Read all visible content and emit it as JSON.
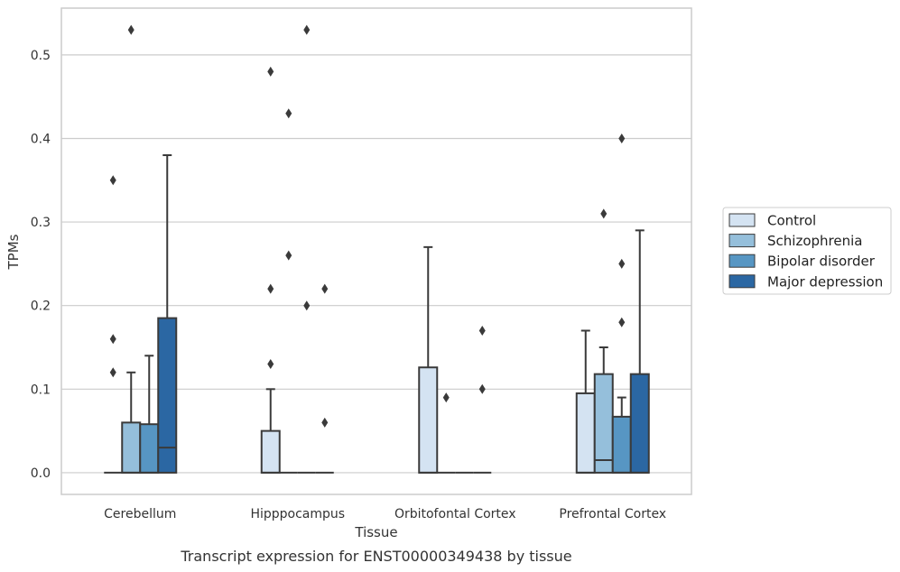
{
  "chart_data": {
    "type": "box",
    "caption": "Transcript expression for ENST00000349438 by tissue",
    "xlabel": "Tissue",
    "ylabel": "TPMs",
    "ylim": [
      -0.026,
      0.556
    ],
    "yticks": [
      0.0,
      0.1,
      0.2,
      0.3,
      0.4,
      0.5
    ],
    "ytick_labels": [
      "0.0",
      "0.1",
      "0.2",
      "0.3",
      "0.4",
      "0.5"
    ],
    "grid": "horizontal",
    "legend_position": "right",
    "categories": [
      "Cerebellum",
      "Hipppocampus",
      "Orbitofontal Cortex",
      "Prefrontal Cortex"
    ],
    "series": [
      {
        "name": "Control",
        "color": "#d4e3f2",
        "boxes": [
          {
            "q1": 0,
            "median": 0,
            "q3": 0,
            "whisker_low": 0,
            "whisker_high": 0,
            "outliers": [
              0.12,
              0.16,
              0.35
            ]
          },
          {
            "q1": 0,
            "median": 0,
            "q3": 0.05,
            "whisker_low": 0,
            "whisker_high": 0.1,
            "outliers": [
              0.13,
              0.22,
              0.48
            ]
          },
          {
            "q1": 0,
            "median": 0,
            "q3": 0.126,
            "whisker_low": 0,
            "whisker_high": 0.27,
            "outliers": []
          },
          {
            "q1": 0,
            "median": 0,
            "q3": 0.095,
            "whisker_low": 0,
            "whisker_high": 0.17,
            "outliers": []
          }
        ]
      },
      {
        "name": "Schizophrenia",
        "color": "#95bfdb",
        "boxes": [
          {
            "q1": 0,
            "median": 0,
            "q3": 0.06,
            "whisker_low": 0,
            "whisker_high": 0.12,
            "outliers": [
              0.53
            ]
          },
          {
            "q1": 0,
            "median": 0,
            "q3": 0,
            "whisker_low": 0,
            "whisker_high": 0,
            "outliers": [
              0.26,
              0.43
            ]
          },
          {
            "q1": 0,
            "median": 0,
            "q3": 0,
            "whisker_low": 0,
            "whisker_high": 0,
            "outliers": [
              0.09
            ]
          },
          {
            "q1": 0,
            "median": 0.015,
            "q3": 0.118,
            "whisker_low": 0,
            "whisker_high": 0.15,
            "outliers": [
              0.31
            ]
          }
        ]
      },
      {
        "name": "Bipolar disorder",
        "color": "#5796c3",
        "boxes": [
          {
            "q1": 0,
            "median": 0,
            "q3": 0.058,
            "whisker_low": 0,
            "whisker_high": 0.14,
            "outliers": []
          },
          {
            "q1": 0,
            "median": 0,
            "q3": 0,
            "whisker_low": 0,
            "whisker_high": 0,
            "outliers": [
              0.2,
              0.53
            ]
          },
          {
            "q1": 0,
            "median": 0,
            "q3": 0,
            "whisker_low": 0,
            "whisker_high": 0,
            "outliers": []
          },
          {
            "q1": 0,
            "median": 0,
            "q3": 0.067,
            "whisker_low": 0,
            "whisker_high": 0.09,
            "outliers": [
              0.18,
              0.25,
              0.4
            ]
          }
        ]
      },
      {
        "name": "Major depression",
        "color": "#2b67a3",
        "boxes": [
          {
            "q1": 0,
            "median": 0.03,
            "q3": 0.185,
            "whisker_low": 0,
            "whisker_high": 0.38,
            "outliers": []
          },
          {
            "q1": 0,
            "median": 0,
            "q3": 0,
            "whisker_low": 0,
            "whisker_high": 0,
            "outliers": [
              0.06,
              0.22
            ]
          },
          {
            "q1": 0,
            "median": 0,
            "q3": 0,
            "whisker_low": 0,
            "whisker_high": 0,
            "outliers": [
              0.1,
              0.17
            ]
          },
          {
            "q1": 0,
            "median": 0,
            "q3": 0.118,
            "whisker_low": 0,
            "whisker_high": 0.29,
            "outliers": []
          }
        ]
      }
    ]
  }
}
